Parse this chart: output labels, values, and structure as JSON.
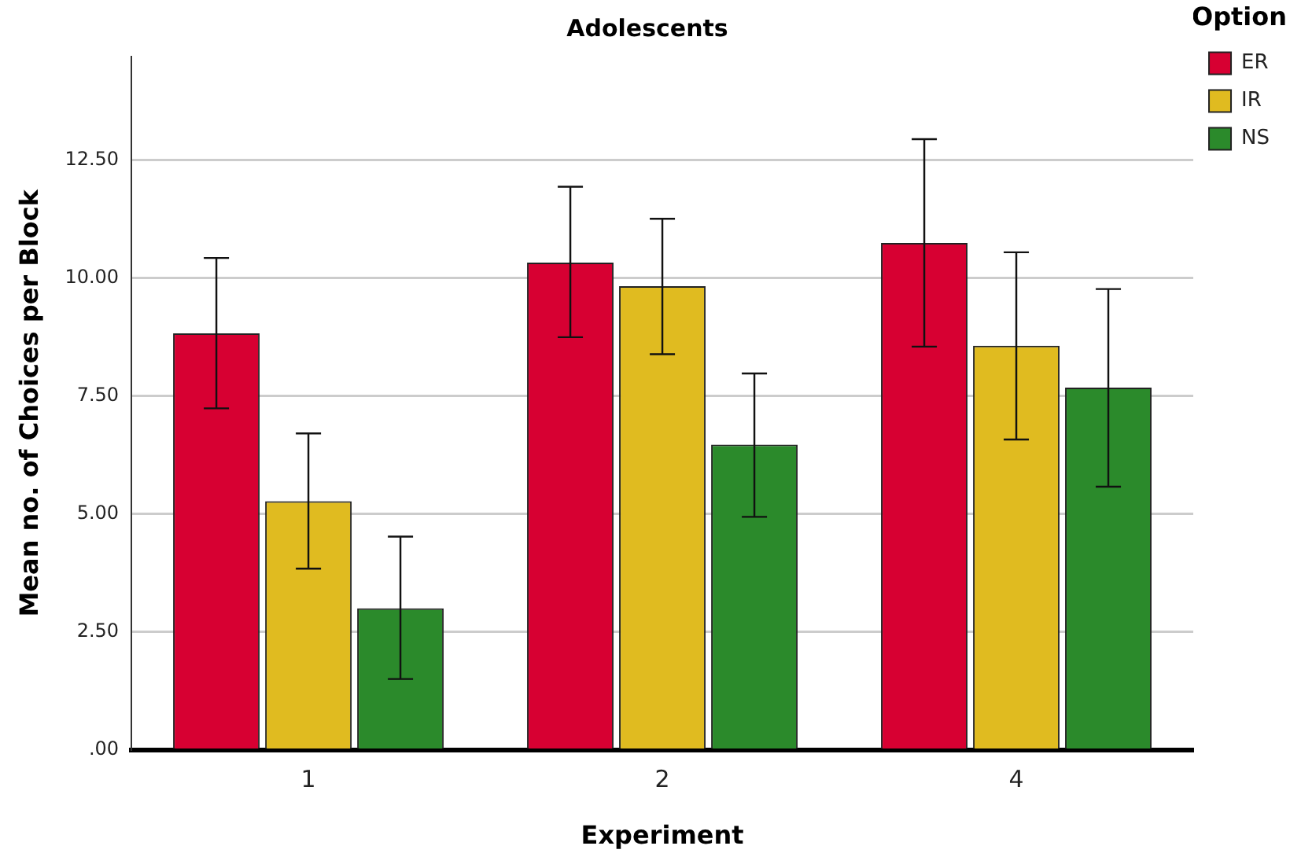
{
  "chart_data": {
    "type": "bar",
    "title": "Adolescents",
    "xlabel": "Experiment",
    "ylabel": "Mean no. of Choices per Block",
    "legend_title": "Option",
    "categories": [
      "1",
      "2",
      "4"
    ],
    "series": [
      {
        "name": "ER",
        "color": "#d70032",
        "values": [
          8.83,
          10.33,
          10.75
        ],
        "errors": [
          [
            7.24,
            10.43
          ],
          [
            8.75,
            11.94
          ],
          [
            8.55,
            12.95
          ]
        ]
      },
      {
        "name": "IR",
        "color": "#e0bb20",
        "values": [
          5.27,
          9.83,
          8.57
        ],
        "errors": [
          [
            3.84,
            6.71
          ],
          [
            8.39,
            11.26
          ],
          [
            6.58,
            10.55
          ]
        ]
      },
      {
        "name": "NS",
        "color": "#2b8a2b",
        "values": [
          3.0,
          6.47,
          7.68
        ],
        "errors": [
          [
            1.5,
            4.52
          ],
          [
            4.94,
            7.98
          ],
          [
            5.58,
            9.77
          ]
        ]
      }
    ],
    "ylim": [
      0,
      14.7
    ],
    "yticks": [
      {
        "value": 0,
        "label": ".00"
      },
      {
        "value": 2.5,
        "label": "2.50"
      },
      {
        "value": 5,
        "label": "5.00"
      },
      {
        "value": 7.5,
        "label": "7.50"
      },
      {
        "value": 10,
        "label": "10.00"
      },
      {
        "value": 12.5,
        "label": "12.50"
      }
    ],
    "grid": "y",
    "legend": "top right"
  }
}
